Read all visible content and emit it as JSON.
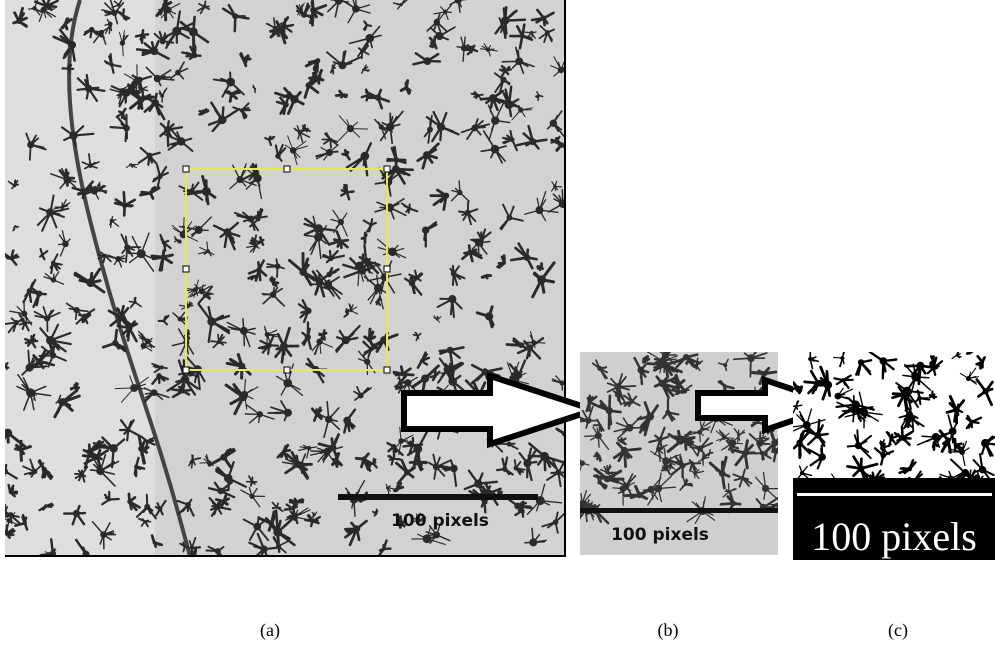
{
  "panels": [
    {
      "scale_label": "100 pixels",
      "caption": "(a)"
    },
    {
      "scale_label": "100 pixels",
      "caption": "(b)"
    },
    {
      "scale_label": "100 pixels",
      "caption": "(c)"
    }
  ]
}
